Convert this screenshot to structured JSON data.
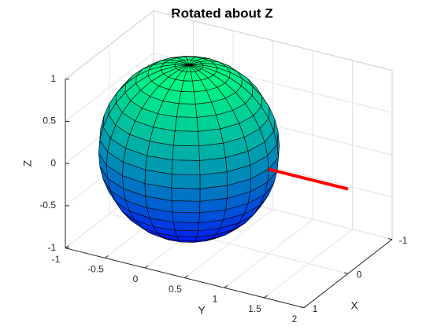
{
  "chart_data": {
    "type": "surface3d",
    "title": "Rotated about Z",
    "xlabel": "X",
    "ylabel": "Y",
    "zlabel": "Z",
    "xlim": [
      -1,
      1
    ],
    "ylim": [
      -1,
      2
    ],
    "zlim": [
      -1,
      1
    ],
    "xticks": [
      -1,
      0,
      1
    ],
    "yticks": [
      -1,
      -0.5,
      0,
      0.5,
      1,
      1.5,
      2
    ],
    "zticks": [
      -1,
      -0.5,
      0,
      0.5,
      1
    ],
    "grid": true,
    "colormap": "winter",
    "surface": {
      "shape": "sphere",
      "center": [
        0,
        0,
        0
      ],
      "radius": 1,
      "facets": 20
    },
    "line": {
      "x": [
        0,
        0
      ],
      "y": [
        1,
        2
      ],
      "z": [
        0,
        0
      ],
      "color": "#ff0000"
    }
  }
}
